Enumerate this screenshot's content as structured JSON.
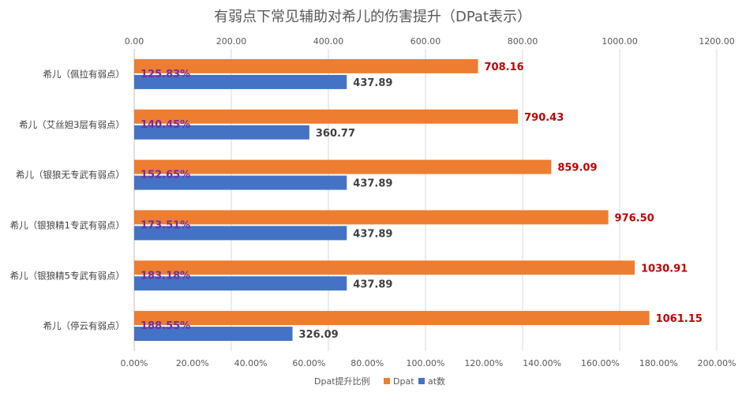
{
  "chart_data": {
    "type": "bar",
    "orientation": "horizontal",
    "title": "有弱点下常见辅助对希儿的伤害提升（DPat表示）",
    "categories": [
      "希儿（佩拉有弱点）",
      "希儿（艾丝妲3层有弱点）",
      "希儿（银狼无专武有弱点）",
      "希儿（银狼精1专武有弱点）",
      "希儿（银狼精5专武有弱点）",
      "希儿（停云有弱点）"
    ],
    "series": [
      {
        "name": "Dpat提升比例",
        "axis": "bottom",
        "color": "#7030A0",
        "values": [
          125.83,
          140.45,
          152.65,
          173.51,
          183.18,
          188.55
        ],
        "labels": [
          "125.83%",
          "140.45%",
          "152.65%",
          "173.51%",
          "183.18%",
          "188.55%"
        ]
      },
      {
        "name": "Dpat",
        "axis": "top",
        "color": "#ED7D31",
        "label_color": "#C00000",
        "values": [
          708.16,
          790.43,
          859.09,
          976.5,
          1030.91,
          1061.15
        ],
        "labels": [
          "708.16",
          "790.43",
          "859.09",
          "976.50",
          "1030.91",
          "1061.15"
        ]
      },
      {
        "name": "at数",
        "axis": "top",
        "color": "#4472C4",
        "label_color": "#404040",
        "values": [
          437.89,
          360.77,
          437.89,
          437.89,
          437.89,
          326.09
        ],
        "labels": [
          "437.89",
          "360.77",
          "437.89",
          "437.89",
          "437.89",
          "326.09"
        ]
      }
    ],
    "top_axis": {
      "range": [
        0,
        1200
      ],
      "ticks": [
        "0.00",
        "200.00",
        "400.00",
        "600.00",
        "800.00",
        "1000.00",
        "1200.00"
      ]
    },
    "bottom_axis": {
      "range": [
        0,
        200
      ],
      "ticks": [
        "0.00%",
        "20.00%",
        "40.00%",
        "60.00%",
        "80.00%",
        "100.00%",
        "120.00%",
        "140.00%",
        "160.00%",
        "180.00%",
        "200.00%"
      ]
    },
    "grid": true,
    "legend_position": "bottom",
    "legend": [
      "Dpat提升比例",
      "Dpat",
      "at数"
    ]
  }
}
